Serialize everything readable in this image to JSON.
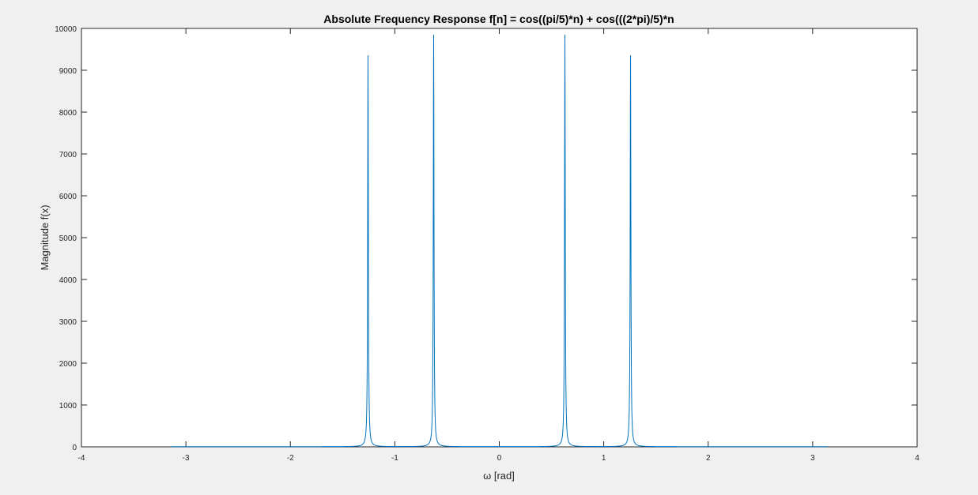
{
  "chart_data": {
    "type": "line",
    "title": "Absolute Frequency Response f[n] = cos((pi/5)*n) + cos(((2*pi)/5)*n",
    "xlabel": "ω [rad]",
    "ylabel": "Magnitude f(x)",
    "xlim": [
      -4,
      4
    ],
    "ylim": [
      0,
      10000
    ],
    "xticks": [
      -4,
      -3,
      -2,
      -1,
      0,
      1,
      2,
      3,
      4
    ],
    "yticks": [
      0,
      1000,
      2000,
      3000,
      4000,
      5000,
      6000,
      7000,
      8000,
      9000,
      10000
    ],
    "grid": false,
    "line_color": "#0072bd",
    "domain": [
      -3.1416,
      3.1416
    ],
    "baseline": 5,
    "peaks": [
      {
        "x": -1.2566,
        "y": 9350
      },
      {
        "x": -0.6283,
        "y": 9830
      },
      {
        "x": 0.6283,
        "y": 9830
      },
      {
        "x": 1.2566,
        "y": 9350
      }
    ]
  }
}
